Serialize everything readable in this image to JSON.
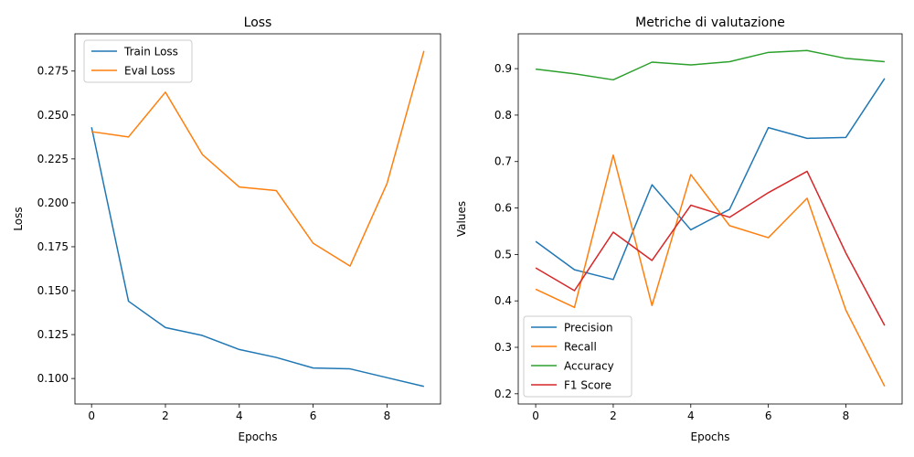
{
  "chart_data": [
    {
      "type": "line",
      "title": "Loss",
      "xlabel": "Epochs",
      "ylabel": "Loss",
      "xlim": [
        -0.45,
        9.45
      ],
      "ylim": [
        0.0855,
        0.2962
      ],
      "xticks": [
        0,
        2,
        4,
        6,
        8
      ],
      "yticks": [
        0.1,
        0.125,
        0.15,
        0.175,
        0.2,
        0.225,
        0.25,
        0.275
      ],
      "ytick_labels": [
        "0.100",
        "0.125",
        "0.150",
        "0.175",
        "0.200",
        "0.225",
        "0.250",
        "0.275"
      ],
      "grid": false,
      "legend_position": "top-left",
      "x": [
        0,
        1,
        2,
        3,
        4,
        5,
        6,
        7,
        8,
        9
      ],
      "series": [
        {
          "name": "Train Loss",
          "color": "#1f77b4",
          "values": [
            0.243,
            0.144,
            0.129,
            0.1245,
            0.1165,
            0.112,
            0.106,
            0.1055,
            0.1005,
            0.0955
          ]
        },
        {
          "name": "Eval Loss",
          "color": "#ff7f0e",
          "values": [
            0.2405,
            0.2375,
            0.263,
            0.2275,
            0.209,
            0.207,
            0.177,
            0.164,
            0.211,
            0.2865
          ]
        }
      ]
    },
    {
      "type": "line",
      "title": "Metriche di valutazione",
      "xlabel": "Epochs",
      "ylabel": "Values",
      "xlim": [
        -0.45,
        9.45
      ],
      "ylim": [
        0.178,
        0.975
      ],
      "xticks": [
        0,
        2,
        4,
        6,
        8
      ],
      "yticks": [
        0.2,
        0.3,
        0.4,
        0.5,
        0.6,
        0.7,
        0.8,
        0.9
      ],
      "ytick_labels": [
        "0.2",
        "0.3",
        "0.4",
        "0.5",
        "0.6",
        "0.7",
        "0.8",
        "0.9"
      ],
      "grid": false,
      "legend_position": "bottom-left",
      "x": [
        0,
        1,
        2,
        3,
        4,
        5,
        6,
        7,
        8,
        9
      ],
      "series": [
        {
          "name": "Precision",
          "color": "#1f77b4",
          "values": [
            0.528,
            0.467,
            0.446,
            0.65,
            0.553,
            0.597,
            0.773,
            0.75,
            0.752,
            0.879
          ]
        },
        {
          "name": "Recall",
          "color": "#ff7f0e",
          "values": [
            0.425,
            0.386,
            0.714,
            0.39,
            0.672,
            0.562,
            0.536,
            0.621,
            0.38,
            0.216
          ]
        },
        {
          "name": "Accuracy",
          "color": "#2ca02c",
          "values": [
            0.899,
            0.889,
            0.876,
            0.914,
            0.908,
            0.915,
            0.935,
            0.939,
            0.922,
            0.915
          ]
        },
        {
          "name": "F1 Score",
          "color": "#d62728",
          "values": [
            0.471,
            0.422,
            0.548,
            0.487,
            0.606,
            0.58,
            0.633,
            0.679,
            0.503,
            0.347
          ]
        }
      ]
    }
  ]
}
